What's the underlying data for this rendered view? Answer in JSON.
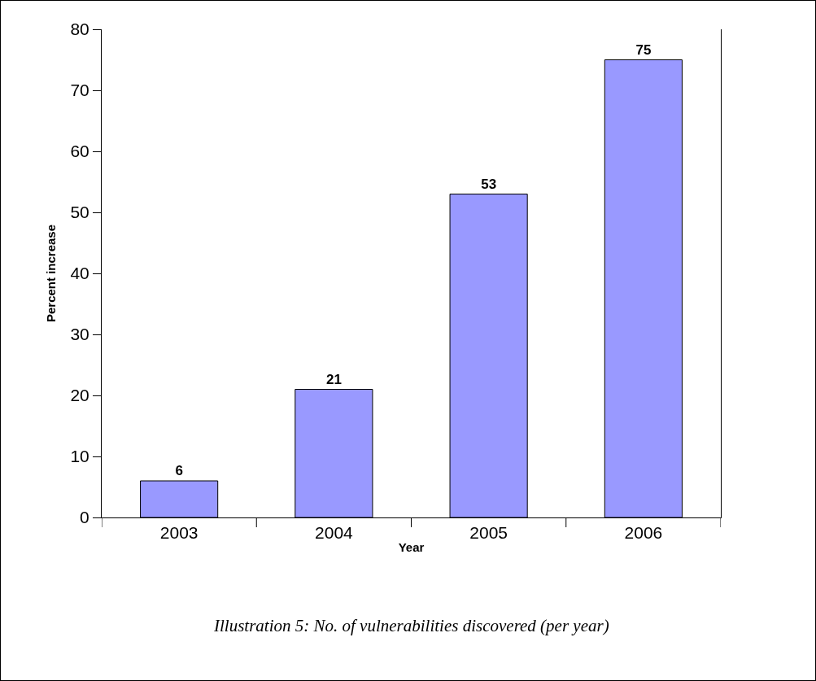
{
  "chart_data": {
    "type": "bar",
    "xlabel": "Year",
    "ylabel": "Percent increase",
    "categories": [
      "2003",
      "2004",
      "2005",
      "2006"
    ],
    "values": [
      6,
      21,
      53,
      75
    ],
    "color": "#9999ff",
    "ylim": [
      0,
      80
    ],
    "yticks": [
      0,
      10,
      20,
      30,
      40,
      50,
      60,
      70,
      80
    ],
    "grid": false,
    "data_labels": true,
    "annotations": [
      "Illustration 5: No. of vulnerabilities discovered (per year)"
    ]
  }
}
